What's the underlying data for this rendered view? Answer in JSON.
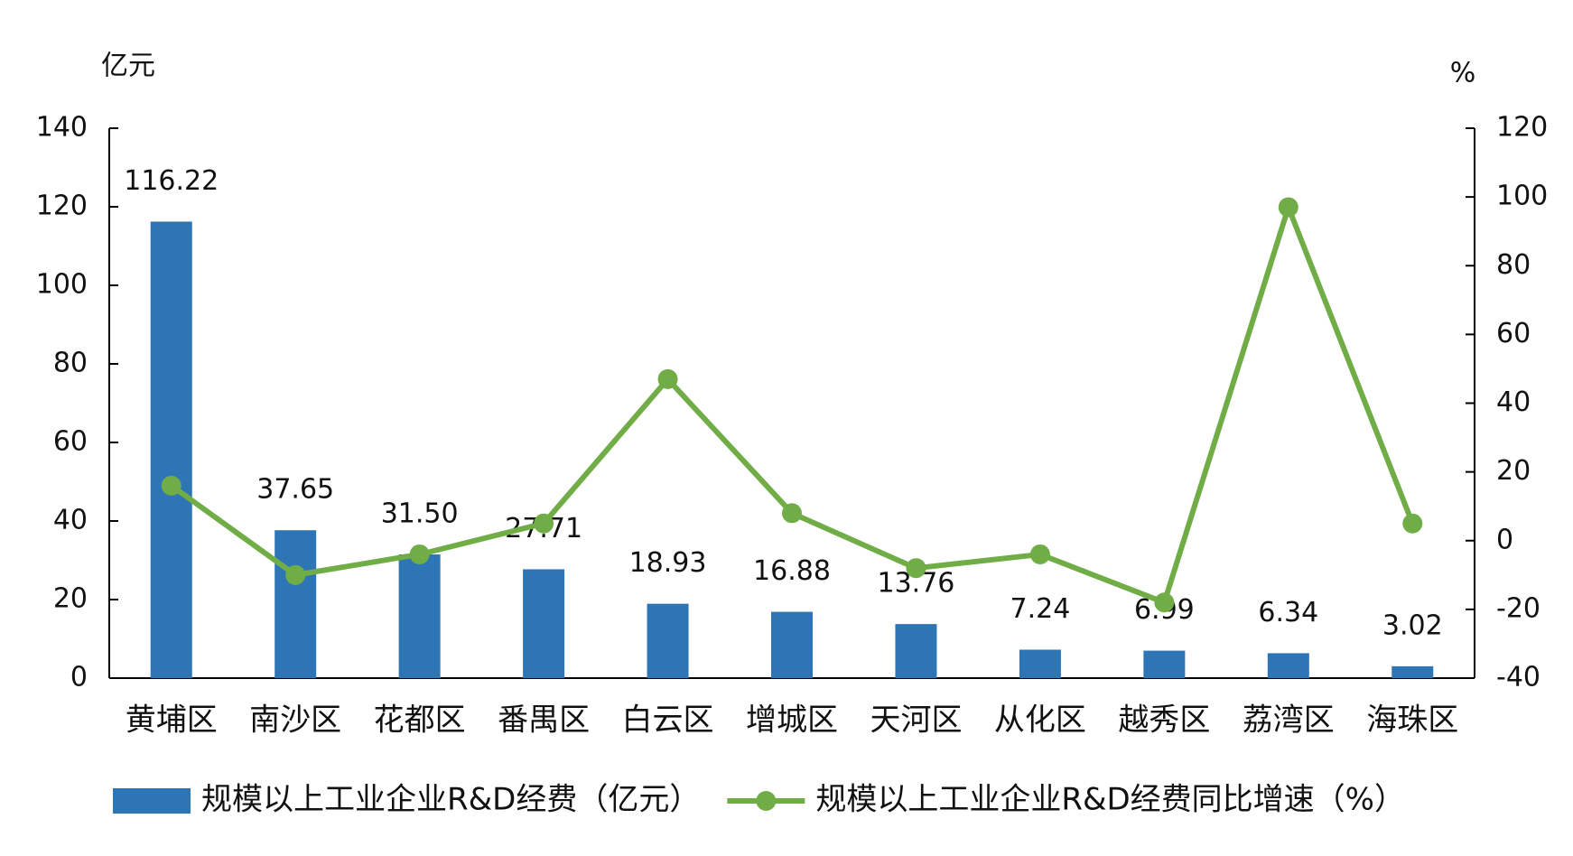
{
  "chart_data": {
    "type": "bar_line",
    "ylabel": "亿元",
    "y2label": "%",
    "categories": [
      "黄埔区",
      "南沙区",
      "花都区",
      "番禺区",
      "白云区",
      "增城区",
      "天河区",
      "从化区",
      "越秀区",
      "荔湾区",
      "海珠区"
    ],
    "series": [
      {
        "name": "规模以上工业企业R&D经费（亿元）",
        "type": "bar",
        "color": "#2e75b6",
        "values": [
          116.22,
          37.65,
          31.5,
          27.71,
          18.93,
          16.88,
          13.76,
          7.24,
          6.99,
          6.34,
          3.02
        ],
        "value_labels": [
          "116.22",
          "37.65",
          "31.50",
          "27.71",
          "18.93",
          "16.88",
          "13.76",
          "7.24",
          "6.99",
          "6.34",
          "3.02"
        ]
      },
      {
        "name": "规模以上工业企业R&D经费同比增速（%）",
        "type": "line",
        "axis": "y2",
        "color": "#70ad47",
        "values": [
          16,
          -10,
          -4,
          5,
          47,
          8,
          -8,
          -4,
          -18,
          97,
          5
        ]
      }
    ],
    "ylim": [
      0,
      140
    ],
    "yticks": [
      0,
      20,
      40,
      60,
      80,
      100,
      120,
      140
    ],
    "y2lim": [
      -40,
      120
    ],
    "y2ticks": [
      -40,
      -20,
      0,
      20,
      40,
      60,
      80,
      100,
      120
    ],
    "grid": false,
    "legend": "bottom"
  }
}
